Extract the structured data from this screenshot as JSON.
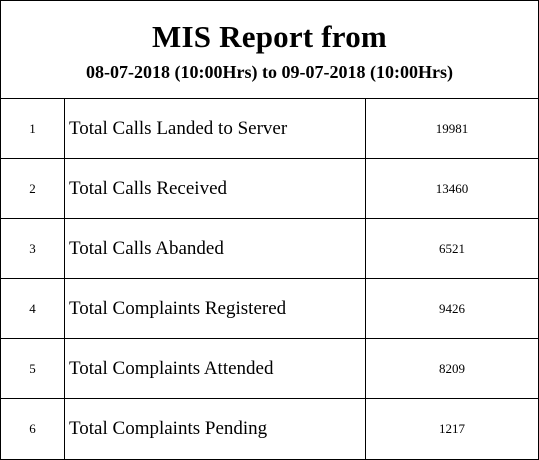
{
  "report": {
    "title": "MIS Report from",
    "subtitle": "08-07-2018 (10:00Hrs) to 09-07-2018 (10:00Hrs)"
  },
  "rows": [
    {
      "sno": "1",
      "label": "Total Calls Landed to Server",
      "value": "19981"
    },
    {
      "sno": "2",
      "label": "Total Calls Received",
      "value": "13460"
    },
    {
      "sno": "3",
      "label": "Total Calls Abanded",
      "value": "6521"
    },
    {
      "sno": "4",
      "label": "Total Complaints Registered",
      "value": "9426"
    },
    {
      "sno": "5",
      "label": "Total Complaints Attended",
      "value": "8209"
    },
    {
      "sno": "6",
      "label": "Total Complaints Pending",
      "value": "1217"
    }
  ]
}
